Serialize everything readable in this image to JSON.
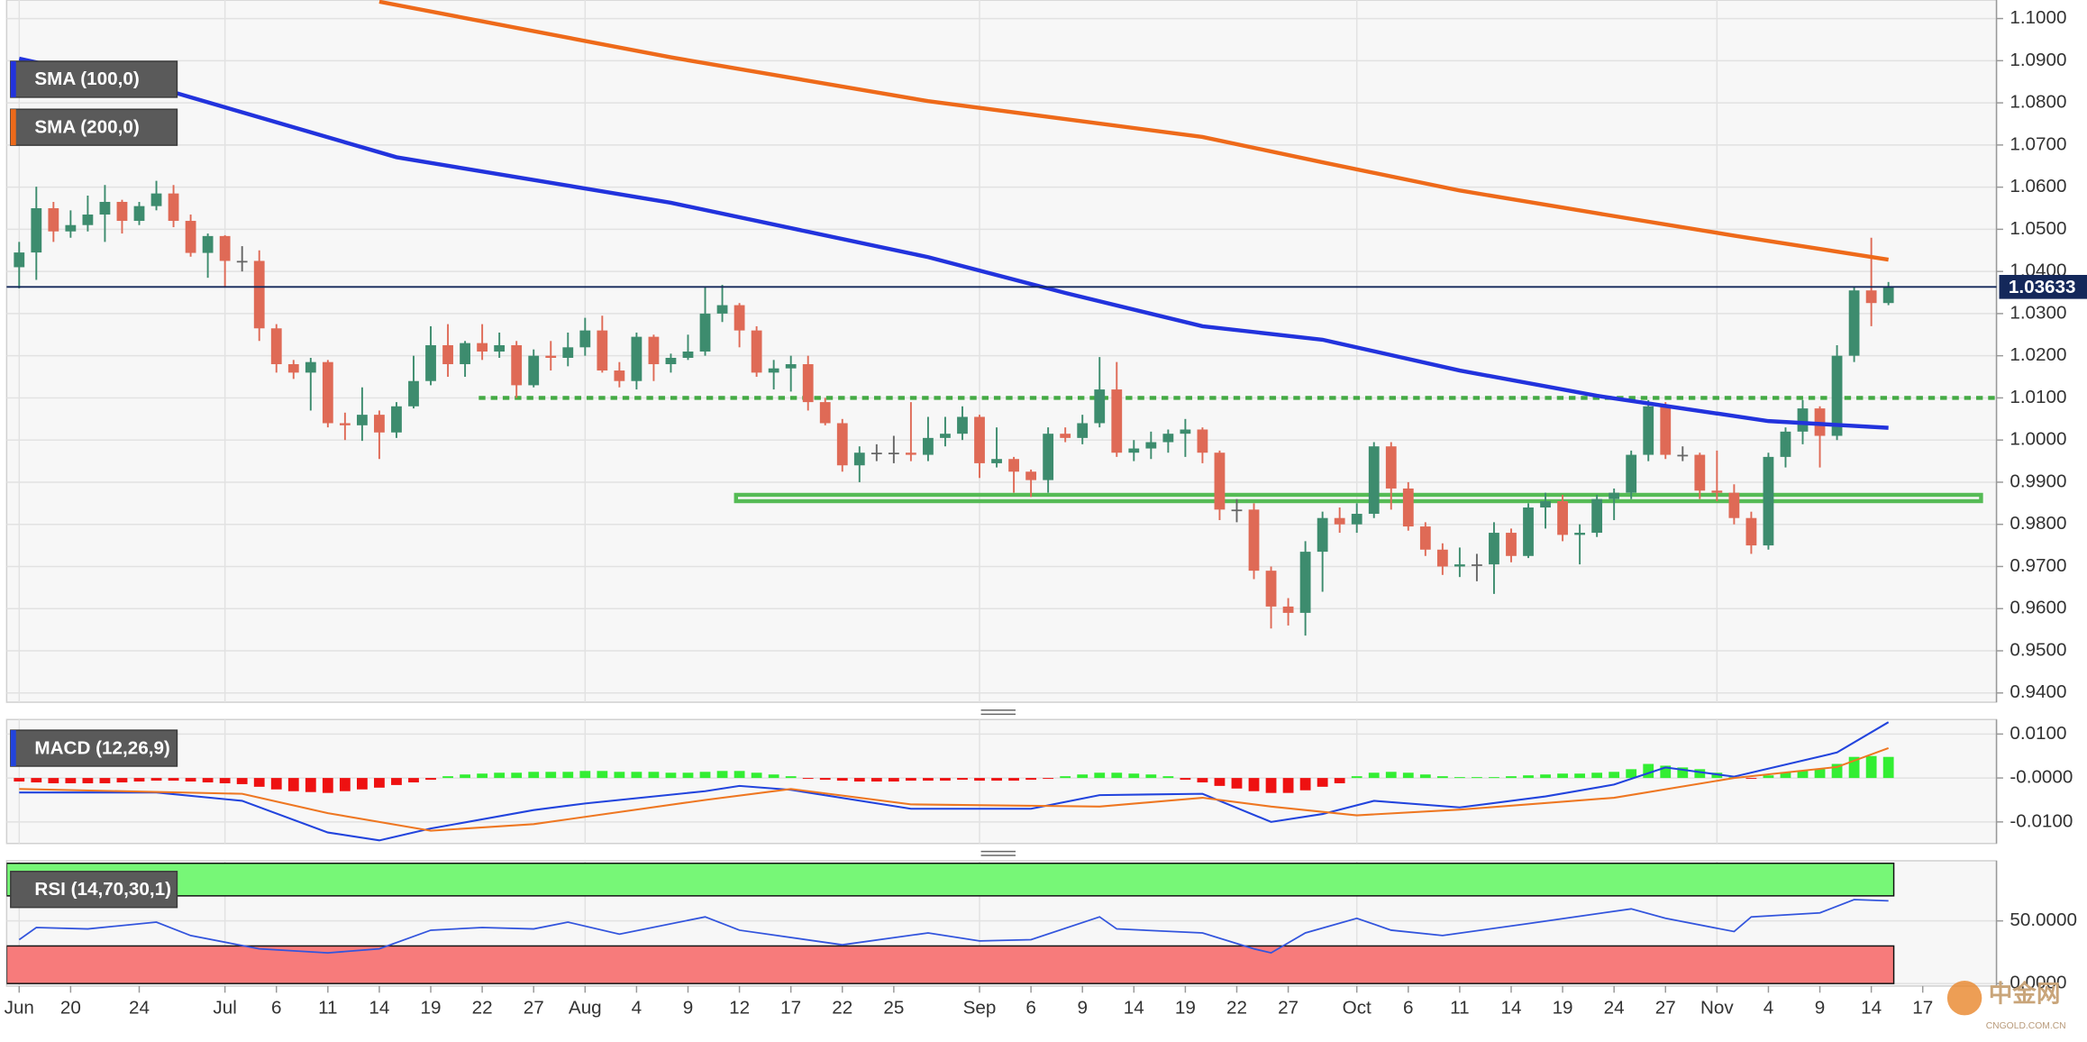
{
  "chart_data": [
    {
      "type": "candlestick",
      "open": [
        1.041,
        1.0445,
        1.055,
        1.0495,
        1.051,
        1.0535,
        1.0565,
        1.052,
        1.0555,
        1.0585,
        1.052,
        1.0444,
        1.0484,
        1.0425,
        1.0425,
        1.0265,
        1.018,
        1.016,
        1.0185,
        1.004,
        1.0035,
        1.006,
        1.0018,
        1.008,
        1.014,
        1.0225,
        1.018,
        1.023,
        1.021,
        1.0225,
        1.013,
        1.02,
        1.0195,
        1.022,
        1.026,
        1.0165,
        1.014,
        1.0245,
        1.018,
        1.0195,
        1.021,
        1.03,
        1.032,
        1.026,
        1.016,
        1.017,
        1.018,
        1.009,
        1.004,
        0.994,
        0.997,
        0.997,
        0.997,
        0.9965,
        1.0005,
        1.0015,
        1.0055,
        0.9945,
        0.9955,
        0.9925,
        0.9905,
        1.0015,
        1.0005,
        1.004,
        1.012,
        0.997,
        0.998,
        0.9995,
        1.0015,
        1.0025,
        0.997,
        0.9835,
        0.9835,
        0.969,
        0.9605,
        0.959,
        0.9735,
        0.9815,
        0.98,
        0.9825,
        0.9985,
        0.9885,
        0.9795,
        0.974,
        0.97,
        0.9705,
        0.9705,
        0.978,
        0.9725,
        0.984,
        0.9855,
        0.9775,
        0.978,
        0.986,
        0.9875,
        0.9965,
        1.008,
        0.9965,
        0.9965,
        0.988,
        0.9875,
        0.9815,
        0.975,
        0.996,
        1.002,
        1.0075,
        1.001,
        1.02,
        1.0355,
        1.0325
      ],
      "high": [
        1.047,
        1.0601,
        1.0565,
        1.0545,
        1.058,
        1.0605,
        1.057,
        1.0565,
        1.0615,
        1.0605,
        1.0535,
        1.049,
        1.0486,
        1.046,
        1.045,
        1.0275,
        1.019,
        1.0195,
        1.019,
        1.0065,
        1.0125,
        1.007,
        1.009,
        1.02,
        1.027,
        1.0275,
        1.0235,
        1.0275,
        1.0255,
        1.0235,
        1.0215,
        1.0235,
        1.0255,
        1.029,
        1.0295,
        1.0185,
        1.0255,
        1.025,
        1.0205,
        1.025,
        1.0365,
        1.0368,
        1.0325,
        1.027,
        1.019,
        1.02,
        1.02,
        1.01,
        1.005,
        0.9985,
        0.999,
        1.001,
        1.009,
        1.0055,
        1.0055,
        1.008,
        1.006,
        1.003,
        0.996,
        0.993,
        1.003,
        1.003,
        1.006,
        1.0197,
        1.0185,
        1.0,
        1.002,
        1.0025,
        1.005,
        1.003,
        0.9975,
        0.986,
        0.985,
        0.97,
        0.9625,
        0.976,
        0.983,
        0.984,
        0.985,
        0.9995,
        0.9995,
        0.99,
        0.9805,
        0.9755,
        0.9745,
        0.973,
        0.9805,
        0.979,
        0.985,
        0.9875,
        0.987,
        0.98,
        0.987,
        0.9885,
        0.9975,
        1.0095,
        1.009,
        0.9985,
        0.997,
        0.9975,
        0.9895,
        0.983,
        0.997,
        1.003,
        1.0095,
        1.008,
        1.0225,
        1.0365,
        1.048,
        1.0375
      ],
      "low": [
        1.036,
        1.038,
        1.047,
        1.048,
        1.0495,
        1.047,
        1.049,
        1.051,
        1.0545,
        1.0505,
        1.0435,
        1.0385,
        1.0365,
        1.04,
        1.0235,
        1.016,
        1.0145,
        1.007,
        1.003,
        1.0,
        0.9998,
        0.9955,
        1.0005,
        1.0075,
        1.013,
        1.015,
        1.015,
        1.019,
        1.0195,
        1.01,
        1.0125,
        1.0165,
        1.0175,
        1.02,
        1.016,
        1.0125,
        1.012,
        1.014,
        1.016,
        1.019,
        1.02,
        1.028,
        1.022,
        1.015,
        1.012,
        1.0115,
        1.007,
        1.0035,
        0.9925,
        0.99,
        0.995,
        0.9945,
        0.995,
        0.995,
        0.9985,
        1.0,
        0.991,
        0.9935,
        0.9875,
        0.9865,
        0.9875,
        0.9995,
        0.999,
        1.003,
        0.996,
        0.995,
        0.9955,
        0.997,
        0.996,
        0.9945,
        0.981,
        0.9805,
        0.967,
        0.9553,
        0.956,
        0.9536,
        0.964,
        0.978,
        0.978,
        0.9815,
        0.9835,
        0.9785,
        0.9725,
        0.968,
        0.9675,
        0.9665,
        0.9635,
        0.971,
        0.972,
        0.979,
        0.976,
        0.9705,
        0.977,
        0.981,
        0.986,
        0.995,
        0.9955,
        0.995,
        0.986,
        0.9855,
        0.98,
        0.973,
        0.974,
        0.9935,
        0.999,
        0.9935,
        1.0,
        1.0185,
        1.027,
        1.032
      ],
      "close": [
        1.0445,
        1.055,
        1.0495,
        1.051,
        1.0535,
        1.0565,
        1.052,
        1.0555,
        1.0585,
        1.052,
        1.0444,
        1.0484,
        1.0425,
        1.0425,
        1.0265,
        1.018,
        1.016,
        1.0185,
        1.004,
        1.0035,
        1.006,
        1.0018,
        1.008,
        1.014,
        1.0225,
        1.018,
        1.023,
        1.021,
        1.0225,
        1.013,
        1.02,
        1.0195,
        1.022,
        1.026,
        1.0165,
        1.014,
        1.0245,
        1.018,
        1.0195,
        1.021,
        1.03,
        1.032,
        1.026,
        1.016,
        1.017,
        1.018,
        1.009,
        1.004,
        0.994,
        0.997,
        0.997,
        0.997,
        0.9965,
        1.0005,
        1.0015,
        1.0055,
        0.9945,
        0.9955,
        0.9925,
        0.9905,
        1.0015,
        1.0005,
        1.004,
        1.012,
        0.997,
        0.998,
        0.9995,
        1.0015,
        1.0025,
        0.997,
        0.9835,
        0.9835,
        0.969,
        0.9605,
        0.959,
        0.9735,
        0.9815,
        0.98,
        0.9825,
        0.9985,
        0.9885,
        0.9795,
        0.974,
        0.97,
        0.9705,
        0.9705,
        0.978,
        0.9725,
        0.984,
        0.9855,
        0.9775,
        0.978,
        0.986,
        0.9875,
        0.9965,
        1.008,
        0.9965,
        0.9965,
        0.988,
        0.9875,
        0.9815,
        0.975,
        0.996,
        1.002,
        1.0075,
        1.001,
        1.02,
        1.0355,
        1.0325,
        1.0363
      ],
      "color_up": "#3d8c6e",
      "color_down": "#df6a56",
      "series": [
        {
          "name": "SMA (100,0)",
          "color": "#2233dd",
          "x": [
            0,
            9,
            22,
            38,
            53,
            61,
            69,
            76,
            84,
            92,
            102,
            109
          ],
          "values": [
            1.0905,
            1.0825,
            1.0671,
            1.0563,
            1.0434,
            1.0349,
            1.027,
            1.0238,
            1.0165,
            1.0105,
            1.0045,
            1.0029
          ]
        },
        {
          "name": "SMA (200,0)",
          "color": "#ee6a1a",
          "x": [
            21,
            38,
            53,
            69,
            76,
            84,
            92,
            100,
            109
          ],
          "values": [
            1.104,
            1.0908,
            1.0804,
            1.0719,
            1.0659,
            1.0592,
            1.0538,
            1.0485,
            1.0428
          ]
        }
      ],
      "levels": [
        {
          "style": "dotted",
          "color": "#44aa44",
          "value": 1.01,
          "start": 26.8
        },
        {
          "style": "zone",
          "color": "#55bb55",
          "values": [
            0.9855,
            0.987
          ],
          "start": 41.8,
          "end": 114.4
        }
      ],
      "last_price": 1.03633,
      "last_price_color": "#14285a",
      "ylim": [
        0.9378,
        1.1044
      ],
      "yticks": [
        {
          "value": 0.94,
          "label": "0.9400"
        },
        {
          "value": 0.95,
          "label": "0.9500"
        },
        {
          "value": 0.96,
          "label": "0.9600"
        },
        {
          "value": 0.97,
          "label": "0.9700"
        },
        {
          "value": 0.98,
          "label": "0.9800"
        },
        {
          "value": 0.99,
          "label": "0.9900"
        },
        {
          "value": 1.0,
          "label": "1.0000"
        },
        {
          "value": 1.01,
          "label": "1.0100"
        },
        {
          "value": 1.02,
          "label": "1.0200"
        },
        {
          "value": 1.03,
          "label": "1.0300"
        },
        {
          "value": 1.04,
          "label": "1.0400"
        },
        {
          "value": 1.05,
          "label": "1.0500"
        },
        {
          "value": 1.06,
          "label": "1.0600"
        },
        {
          "value": 1.07,
          "label": "1.0700"
        },
        {
          "value": 1.08,
          "label": "1.0800"
        },
        {
          "value": 1.09,
          "label": "1.0900"
        },
        {
          "value": 1.1,
          "label": "1.1000"
        }
      ],
      "xlim": [
        -0.73,
        115.3
      ],
      "xticks": [
        {
          "value": 0,
          "label": "Jun"
        },
        {
          "value": 3,
          "label": "20"
        },
        {
          "value": 7,
          "label": "24"
        },
        {
          "value": 12,
          "label": "Jul"
        },
        {
          "value": 15,
          "label": "6"
        },
        {
          "value": 18,
          "label": "11"
        },
        {
          "value": 21,
          "label": "14"
        },
        {
          "value": 24,
          "label": "19"
        },
        {
          "value": 27,
          "label": "22"
        },
        {
          "value": 30,
          "label": "27"
        },
        {
          "value": 33,
          "label": "Aug"
        },
        {
          "value": 36,
          "label": "4"
        },
        {
          "value": 39,
          "label": "9"
        },
        {
          "value": 42,
          "label": "12"
        },
        {
          "value": 45,
          "label": "17"
        },
        {
          "value": 48,
          "label": "22"
        },
        {
          "value": 51,
          "label": "25"
        },
        {
          "value": 56,
          "label": "Sep"
        },
        {
          "value": 59,
          "label": "6"
        },
        {
          "value": 62,
          "label": "9"
        },
        {
          "value": 65,
          "label": "14"
        },
        {
          "value": 68,
          "label": "19"
        },
        {
          "value": 71,
          "label": "22"
        },
        {
          "value": 74,
          "label": "27"
        },
        {
          "value": 78,
          "label": "Oct"
        },
        {
          "value": 81,
          "label": "6"
        },
        {
          "value": 84,
          "label": "11"
        },
        {
          "value": 87,
          "label": "14"
        },
        {
          "value": 90,
          "label": "19"
        },
        {
          "value": 93,
          "label": "24"
        },
        {
          "value": 96,
          "label": "27"
        },
        {
          "value": 99,
          "label": "Nov"
        },
        {
          "value": 102,
          "label": "4"
        },
        {
          "value": 105,
          "label": "9"
        },
        {
          "value": 108,
          "label": "14"
        },
        {
          "value": 111,
          "label": "17"
        }
      ],
      "grid": true
    },
    {
      "type": "macd",
      "title": "MACD (12,26,9)",
      "histogram": [
        -0.0008,
        -0.001,
        -0.0012,
        -0.0012,
        -0.0012,
        -0.0012,
        -0.001,
        -0.0008,
        -0.0006,
        -0.0006,
        -0.0008,
        -0.001,
        -0.0012,
        -0.0014,
        -0.002,
        -0.0026,
        -0.003,
        -0.0032,
        -0.0034,
        -0.003,
        -0.0026,
        -0.0022,
        -0.0016,
        -0.001,
        -0.0004,
        0.0004,
        0.0008,
        0.001,
        0.0012,
        0.0012,
        0.0014,
        0.0014,
        0.0014,
        0.0016,
        0.0016,
        0.0014,
        0.0014,
        0.0014,
        0.0012,
        0.0012,
        0.0014,
        0.0016,
        0.0016,
        0.0012,
        0.0008,
        0.0004,
        -0.0002,
        -0.0004,
        -0.0006,
        -0.0008,
        -0.0008,
        -0.0008,
        -0.0006,
        -0.0006,
        -0.0006,
        -0.0004,
        -0.0006,
        -0.0006,
        -0.0006,
        -0.0004,
        -0.0002,
        0.0004,
        0.0008,
        0.0012,
        0.0012,
        0.001,
        0.0008,
        0.0004,
        -0.0004,
        -0.001,
        -0.0018,
        -0.0024,
        -0.003,
        -0.0034,
        -0.0034,
        -0.0028,
        -0.002,
        -0.0012,
        0.0004,
        0.0012,
        0.0014,
        0.0012,
        0.0008,
        0.0004,
        0.0002,
        0.0002,
        0.0002,
        0.0004,
        0.0006,
        0.0008,
        0.001,
        0.001,
        0.0012,
        0.0014,
        0.002,
        0.0032,
        0.0028,
        0.0024,
        0.002,
        0.0012,
        0.0002,
        -0.0002,
        0.0006,
        0.0012,
        0.0016,
        0.002,
        0.0032,
        0.0048,
        0.005,
        0.0048
      ],
      "histogram_up": "#33ee33",
      "histogram_down": "#ee1111",
      "series": [
        {
          "color": "#2244dd",
          "x": [
            0,
            8,
            13,
            18,
            21,
            24,
            30,
            33,
            40,
            42,
            45,
            52,
            59,
            63,
            69,
            73,
            76,
            79,
            84,
            89,
            93,
            96,
            100,
            106,
            109
          ],
          "values": [
            -0.0033,
            -0.0033,
            -0.0052,
            -0.0124,
            -0.0142,
            -0.0115,
            -0.0073,
            -0.0058,
            -0.003,
            -0.0018,
            -0.0027,
            -0.007,
            -0.007,
            -0.0039,
            -0.0036,
            -0.01,
            -0.0082,
            -0.0052,
            -0.0067,
            -0.0042,
            -0.0015,
            0.0024,
            0.0003,
            0.0058,
            0.0127
          ]
        },
        {
          "color": "#ee7722",
          "x": [
            0,
            13,
            18,
            24,
            30,
            40,
            45,
            52,
            63,
            69,
            73,
            78,
            84,
            93,
            100,
            106,
            109
          ],
          "values": [
            -0.0025,
            -0.0036,
            -0.008,
            -0.012,
            -0.0105,
            -0.005,
            -0.0025,
            -0.006,
            -0.0065,
            -0.0045,
            -0.0065,
            -0.0085,
            -0.0072,
            -0.0045,
            0.0,
            0.0025,
            0.0068
          ]
        }
      ],
      "ylim": [
        -0.0149,
        0.0133
      ],
      "yticks": [
        {
          "value": -0.01,
          "label": "-0.0100"
        },
        {
          "value": 0,
          "label": "-0.0000"
        },
        {
          "value": 0.01,
          "label": "0.0100"
        }
      ]
    },
    {
      "type": "rsi",
      "title": "RSI (14,70,30,1)",
      "bands": [
        {
          "from": 70,
          "to": 96,
          "color": "#77f777"
        },
        {
          "from": 0,
          "to": 30,
          "color": "#f77b7b"
        }
      ],
      "series": [
        {
          "color": "#3355dd",
          "x": [
            0,
            1,
            4,
            8,
            10,
            14,
            18,
            21,
            24,
            27,
            30,
            32,
            35,
            40,
            42,
            48,
            53,
            56,
            59,
            63,
            64,
            69,
            72,
            73,
            75,
            78,
            80,
            83,
            88,
            94,
            96,
            100,
            101,
            105,
            107,
            109
          ],
          "values": [
            35,
            44.7,
            43.6,
            49,
            38.3,
            27.7,
            24.5,
            27.7,
            42.6,
            44.7,
            43.6,
            49,
            39.4,
            53.2,
            42.6,
            30.9,
            40.4,
            34,
            35,
            53.2,
            43.6,
            40.4,
            27.7,
            24.5,
            40.4,
            52.1,
            42.6,
            38.3,
            47.9,
            59.6,
            52.1,
            41.5,
            53.2,
            56.4,
            67,
            66
          ]
        }
      ],
      "ylim": [
        -2,
        98
      ],
      "yticks": [
        {
          "value": 0,
          "label": "0.0000"
        },
        {
          "value": 50,
          "label": "50.0000"
        }
      ]
    }
  ],
  "watermark": {
    "name": "中金网",
    "site": "CNGOLD.COM.CN"
  }
}
